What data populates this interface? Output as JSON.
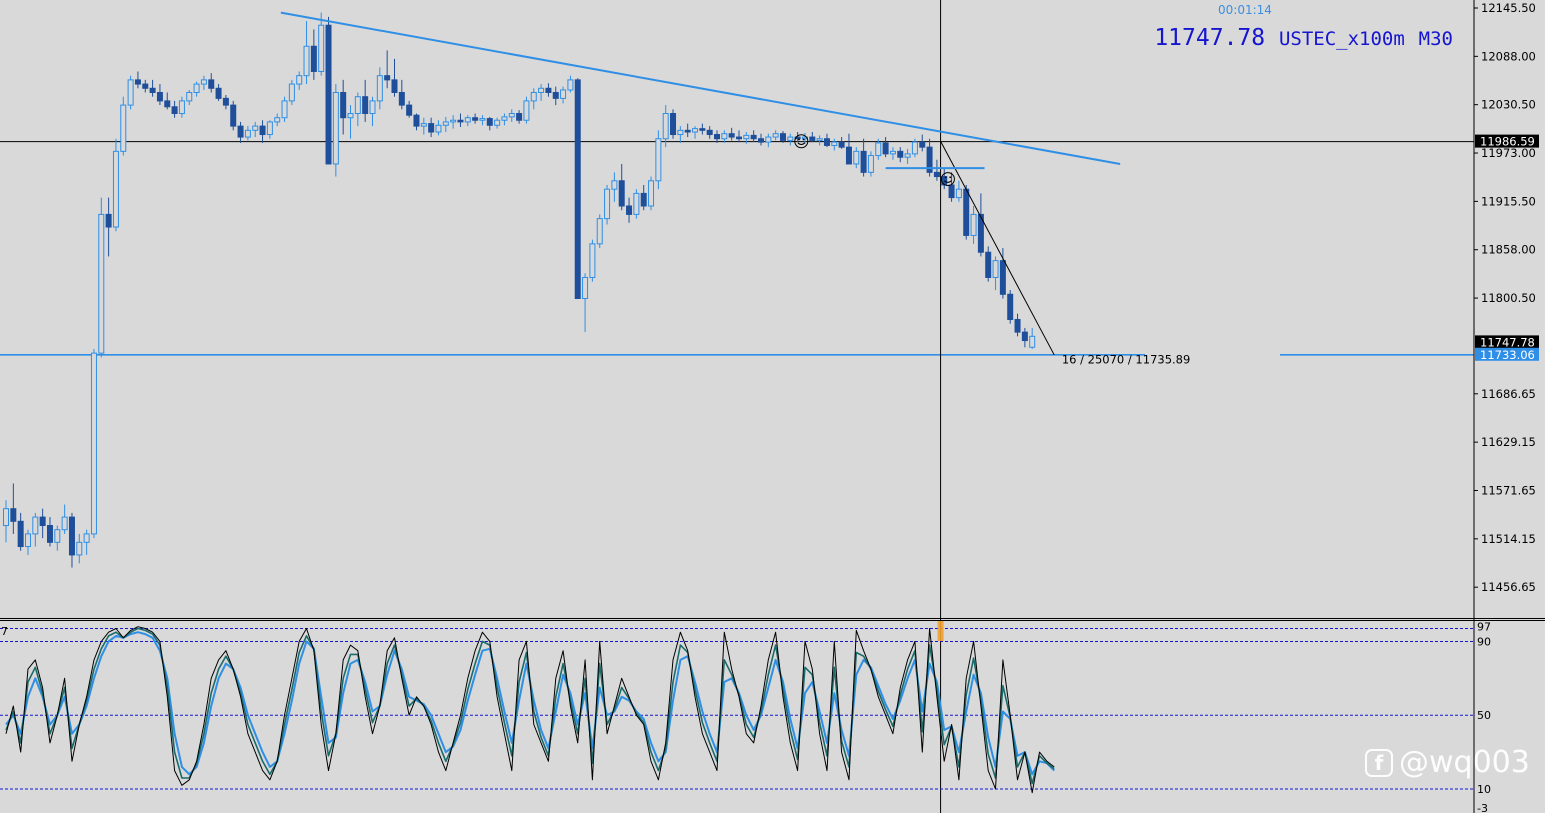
{
  "header": {
    "countdown": "00:01:14",
    "bid": "11747.78",
    "symbol": "USTEC_x100m",
    "timeframe": "M30"
  },
  "watermark": {
    "text": "@wq003",
    "icon": "weibo-like-logo-icon"
  },
  "colors": {
    "background": "#d9d9d9",
    "bull_candle": "#2f8fe6",
    "bear_candle": "#1f4f9a",
    "trendline": "#2f8fe6",
    "level_line": "#2f8fe6",
    "crosshair": "#000000",
    "osc_main": "#000000",
    "osc_signal_1": "#2f8fe6",
    "osc_signal_2": "#1a6b6b",
    "grid_dash": "#1515d0",
    "current_bar_marker": "#f0a030"
  },
  "chart_data": {
    "type": "candlestick",
    "symbol": "USTEC_x100m",
    "timeframe": "M30",
    "price_axis": {
      "min": 11420,
      "max": 12155,
      "ticks": [
        "12145.50",
        "12088.00",
        "12030.50",
        "11973.00",
        "11915.50",
        "11858.00",
        "11800.50",
        "11686.65",
        "11629.15",
        "11571.65",
        "11514.15",
        "11456.65"
      ]
    },
    "price_labels": [
      {
        "value": 11986.59,
        "text": "11986.59",
        "style": "crosshair"
      },
      {
        "value": 11747.78,
        "text": "11747.78",
        "style": "bid"
      },
      {
        "value": 11733.06,
        "text": "11733.06",
        "style": "level"
      }
    ],
    "horizontal_levels": [
      {
        "price": 11733.06,
        "kind": "support"
      },
      {
        "price": 11986.59,
        "kind": "crosshair"
      }
    ],
    "trendlines": [
      {
        "from": {
          "bar": 37.5,
          "price": 12140
        },
        "to": {
          "bar": 152,
          "price": 11960
        },
        "kind": "resistance"
      },
      {
        "from": {
          "bar": 127.5,
          "price": 11987
        },
        "to": {
          "bar": 143,
          "price": 11733
        },
        "kind": "measure"
      },
      {
        "from": {
          "bar": 120,
          "price": 11955
        },
        "to": {
          "bar": 133.5,
          "price": 11955
        },
        "kind": "range"
      }
    ],
    "ruler_label": {
      "text": "16 / 25070 / 11735.89",
      "bar": 143.5,
      "price": 11735.89
    },
    "smiley_markers": [
      {
        "bar": 108.5,
        "price": 11987
      },
      {
        "bar": 128.5,
        "price": 11942
      }
    ],
    "crosshair_bar": 127.5,
    "bars": [
      [
        11530,
        11560,
        11510,
        11550
      ],
      [
        11550,
        11580,
        11520,
        11535
      ],
      [
        11535,
        11545,
        11500,
        11505
      ],
      [
        11505,
        11525,
        11495,
        11520
      ],
      [
        11520,
        11545,
        11505,
        11540
      ],
      [
        11540,
        11550,
        11515,
        11530
      ],
      [
        11530,
        11540,
        11505,
        11510
      ],
      [
        11510,
        11530,
        11500,
        11525
      ],
      [
        11525,
        11555,
        11520,
        11540
      ],
      [
        11540,
        11545,
        11480,
        11495
      ],
      [
        11495,
        11520,
        11485,
        11510
      ],
      [
        11510,
        11525,
        11495,
        11520
      ],
      [
        11520,
        11740,
        11515,
        11735
      ],
      [
        11735,
        11920,
        11730,
        11900
      ],
      [
        11900,
        11920,
        11850,
        11885
      ],
      [
        11885,
        11990,
        11880,
        11975
      ],
      [
        11975,
        12040,
        11970,
        12030
      ],
      [
        12030,
        12065,
        12025,
        12060
      ],
      [
        12060,
        12070,
        12050,
        12055
      ],
      [
        12055,
        12060,
        12045,
        12050
      ],
      [
        12050,
        12060,
        12040,
        12045
      ],
      [
        12045,
        12055,
        12030,
        12035
      ],
      [
        12035,
        12045,
        12025,
        12028
      ],
      [
        12028,
        12035,
        12015,
        12020
      ],
      [
        12020,
        12040,
        12015,
        12035
      ],
      [
        12035,
        12048,
        12030,
        12045
      ],
      [
        12045,
        12058,
        12040,
        12055
      ],
      [
        12055,
        12065,
        12048,
        12060
      ],
      [
        12060,
        12068,
        12045,
        12050
      ],
      [
        12050,
        12055,
        12035,
        12038
      ],
      [
        12038,
        12042,
        12025,
        12030
      ],
      [
        12030,
        12035,
        12000,
        12005
      ],
      [
        12005,
        12010,
        11985,
        11992
      ],
      [
        11992,
        12005,
        11988,
        12000
      ],
      [
        12000,
        12010,
        11992,
        12005
      ],
      [
        12005,
        12012,
        11985,
        11995
      ],
      [
        11995,
        12012,
        11990,
        12010
      ],
      [
        12010,
        12020,
        12005,
        12015
      ],
      [
        12015,
        12040,
        12010,
        12035
      ],
      [
        12035,
        12060,
        12030,
        12055
      ],
      [
        12055,
        12070,
        12048,
        12065
      ],
      [
        12065,
        12130,
        12055,
        12100
      ],
      [
        12100,
        12120,
        12060,
        12070
      ],
      [
        12070,
        12140,
        12065,
        12125
      ],
      [
        12125,
        12135,
        11960,
        11960
      ],
      [
        11960,
        12055,
        11945,
        12045
      ],
      [
        12045,
        12060,
        11995,
        12015
      ],
      [
        12015,
        12030,
        11990,
        12020
      ],
      [
        12020,
        12045,
        12005,
        12040
      ],
      [
        12040,
        12060,
        12010,
        12020
      ],
      [
        12020,
        12040,
        12005,
        12035
      ],
      [
        12035,
        12075,
        12025,
        12065
      ],
      [
        12065,
        12095,
        12050,
        12060
      ],
      [
        12060,
        12085,
        12040,
        12045
      ],
      [
        12045,
        12060,
        12025,
        12030
      ],
      [
        12030,
        12035,
        12015,
        12018
      ],
      [
        12018,
        12020,
        12000,
        12005
      ],
      [
        12005,
        12015,
        11995,
        12008
      ],
      [
        12008,
        12015,
        11992,
        11998
      ],
      [
        11998,
        12012,
        11994,
        12006
      ],
      [
        12006,
        12016,
        11998,
        12010
      ],
      [
        12010,
        12018,
        12002,
        12012
      ],
      [
        12012,
        12020,
        12004,
        12010
      ],
      [
        12010,
        12018,
        12005,
        12015
      ],
      [
        12015,
        12020,
        12008,
        12012
      ],
      [
        12012,
        12018,
        12006,
        12014
      ],
      [
        12014,
        12016,
        12000,
        12006
      ],
      [
        12006,
        12015,
        12002,
        12012
      ],
      [
        12012,
        12020,
        12006,
        12016
      ],
      [
        12016,
        12025,
        12010,
        12020
      ],
      [
        12020,
        12024,
        12008,
        12012
      ],
      [
        12012,
        12040,
        12008,
        12035
      ],
      [
        12035,
        12050,
        12025,
        12045
      ],
      [
        12045,
        12055,
        12035,
        12050
      ],
      [
        12050,
        12056,
        12040,
        12045
      ],
      [
        12045,
        12052,
        12030,
        12038
      ],
      [
        12038,
        12052,
        12032,
        12048
      ],
      [
        12048,
        12065,
        12045,
        12060
      ],
      [
        12060,
        12062,
        11800,
        11800
      ],
      [
        11800,
        11830,
        11760,
        11825
      ],
      [
        11825,
        11870,
        11820,
        11865
      ],
      [
        11865,
        11900,
        11860,
        11895
      ],
      [
        11895,
        11935,
        11888,
        11930
      ],
      [
        11930,
        11950,
        11915,
        11940
      ],
      [
        11940,
        11960,
        11905,
        11910
      ],
      [
        11910,
        11920,
        11890,
        11900
      ],
      [
        11900,
        11930,
        11895,
        11925
      ],
      [
        11925,
        11935,
        11905,
        11910
      ],
      [
        11910,
        11945,
        11905,
        11940
      ],
      [
        11940,
        12000,
        11930,
        11990
      ],
      [
        11990,
        12030,
        11980,
        12020
      ],
      [
        12020,
        12025,
        11990,
        11995
      ],
      [
        11995,
        12005,
        11985,
        12000
      ],
      [
        12000,
        12008,
        11992,
        11998
      ],
      [
        11998,
        12005,
        11990,
        12002
      ],
      [
        12002,
        12008,
        11995,
        12000
      ],
      [
        12000,
        12005,
        11990,
        11995
      ],
      [
        11995,
        12000,
        11985,
        11990
      ],
      [
        11990,
        12000,
        11985,
        11996
      ],
      [
        11996,
        12003,
        11988,
        11992
      ],
      [
        11992,
        12000,
        11986,
        11990
      ],
      [
        11990,
        11998,
        11984,
        11994
      ],
      [
        11994,
        12000,
        11986,
        11990
      ],
      [
        11990,
        11996,
        11982,
        11986
      ],
      [
        11986,
        11996,
        11980,
        11992
      ],
      [
        11992,
        12000,
        11988,
        11996
      ],
      [
        11996,
        11999,
        11985,
        11988
      ],
      [
        11988,
        11996,
        11982,
        11992
      ],
      [
        11992,
        11998,
        11986,
        11990
      ],
      [
        11990,
        11997,
        11984,
        11992
      ],
      [
        11992,
        11998,
        11986,
        11988
      ],
      [
        11988,
        11994,
        11982,
        11990
      ],
      [
        11990,
        11996,
        11980,
        11982
      ],
      [
        11982,
        11990,
        11976,
        11986
      ],
      [
        11986,
        11992,
        11978,
        11980
      ],
      [
        11980,
        11996,
        11960,
        11960
      ],
      [
        11960,
        11980,
        11955,
        11975
      ],
      [
        11975,
        11990,
        11945,
        11950
      ],
      [
        11950,
        11975,
        11945,
        11970
      ],
      [
        11970,
        11990,
        11965,
        11985
      ],
      [
        11985,
        11992,
        11968,
        11972
      ],
      [
        11972,
        11980,
        11965,
        11975
      ],
      [
        11975,
        11980,
        11962,
        11968
      ],
      [
        11968,
        11978,
        11960,
        11972
      ],
      [
        11972,
        11990,
        11968,
        11986
      ],
      [
        11986,
        11995,
        11975,
        11980
      ],
      [
        11980,
        11990,
        11945,
        11950
      ],
      [
        11950,
        11965,
        11940,
        11945
      ],
      [
        11945,
        11955,
        11930,
        11935
      ],
      [
        11935,
        11950,
        11915,
        11920
      ],
      [
        11920,
        11940,
        11915,
        11930
      ],
      [
        11930,
        11935,
        11870,
        11875
      ],
      [
        11875,
        11910,
        11865,
        11900
      ],
      [
        11900,
        11925,
        11850,
        11855
      ],
      [
        11855,
        11862,
        11820,
        11825
      ],
      [
        11825,
        11850,
        11810,
        11845
      ],
      [
        11845,
        11860,
        11800,
        11805
      ],
      [
        11805,
        11810,
        11770,
        11775
      ],
      [
        11775,
        11782,
        11755,
        11760
      ],
      [
        11760,
        11765,
        11742,
        11750
      ],
      [
        11742,
        11765,
        11740,
        11755
      ]
    ],
    "oscillator": {
      "levels": [
        97,
        90,
        50,
        10
      ],
      "level_labels": [
        "97",
        "90",
        "50",
        "10"
      ],
      "left_label": "7",
      "bottom_label": "-3",
      "current_bar": 127.5,
      "main_line": [
        40,
        55,
        30,
        75,
        80,
        65,
        35,
        50,
        70,
        25,
        45,
        60,
        80,
        90,
        95,
        97,
        92,
        96,
        98,
        97,
        95,
        90,
        60,
        20,
        12,
        15,
        25,
        45,
        70,
        80,
        85,
        75,
        60,
        40,
        30,
        20,
        15,
        25,
        50,
        70,
        90,
        97,
        85,
        45,
        20,
        40,
        80,
        88,
        85,
        60,
        40,
        55,
        85,
        92,
        70,
        50,
        60,
        55,
        45,
        30,
        20,
        35,
        50,
        70,
        85,
        95,
        90,
        60,
        40,
        20,
        80,
        90,
        45,
        35,
        25,
        70,
        85,
        55,
        35,
        80,
        15,
        90,
        40,
        55,
        70,
        60,
        50,
        45,
        25,
        15,
        35,
        80,
        95,
        85,
        60,
        40,
        30,
        20,
        95,
        75,
        60,
        40,
        35,
        55,
        80,
        95,
        60,
        35,
        20,
        90,
        75,
        40,
        20,
        90,
        30,
        15,
        96,
        85,
        75,
        60,
        50,
        40,
        65,
        80,
        90,
        30,
        97,
        60,
        25,
        45,
        15,
        70,
        90,
        55,
        20,
        10,
        80,
        50,
        15,
        30,
        8,
        30,
        25,
        22
      ],
      "signal_1": [
        45,
        50,
        40,
        60,
        70,
        60,
        45,
        50,
        60,
        40,
        45,
        55,
        70,
        82,
        90,
        93,
        92,
        94,
        95,
        94,
        92,
        85,
        70,
        40,
        22,
        18,
        22,
        35,
        55,
        70,
        78,
        75,
        65,
        50,
        40,
        30,
        22,
        25,
        40,
        58,
        78,
        90,
        86,
        60,
        35,
        38,
        62,
        78,
        80,
        68,
        52,
        55,
        72,
        85,
        75,
        60,
        58,
        56,
        50,
        40,
        30,
        33,
        42,
        58,
        72,
        85,
        86,
        70,
        52,
        35,
        58,
        78,
        58,
        42,
        32,
        52,
        72,
        62,
        45,
        62,
        32,
        65,
        50,
        52,
        60,
        58,
        52,
        48,
        35,
        25,
        30,
        58,
        80,
        82,
        68,
        52,
        40,
        30,
        68,
        70,
        62,
        50,
        42,
        50,
        65,
        80,
        68,
        48,
        32,
        62,
        68,
        52,
        35,
        62,
        42,
        28,
        72,
        80,
        76,
        66,
        56,
        48,
        58,
        70,
        80,
        52,
        78,
        68,
        42,
        44,
        30,
        52,
        72,
        62,
        38,
        22,
        52,
        48,
        28,
        30,
        18,
        25,
        24,
        20
      ],
      "signal_2": [
        42,
        52,
        35,
        68,
        76,
        62,
        40,
        50,
        65,
        32,
        45,
        58,
        75,
        86,
        93,
        95,
        92,
        95,
        97,
        96,
        94,
        88,
        65,
        30,
        16,
        16,
        24,
        40,
        62,
        75,
        82,
        75,
        62,
        45,
        35,
        25,
        18,
        25,
        45,
        64,
        84,
        93,
        86,
        52,
        28,
        40,
        70,
        83,
        83,
        64,
        46,
        55,
        78,
        88,
        72,
        55,
        59,
        55,
        47,
        35,
        25,
        34,
        46,
        64,
        78,
        90,
        88,
        65,
        46,
        28,
        68,
        84,
        52,
        38,
        28,
        60,
        78,
        58,
        40,
        70,
        24,
        78,
        45,
        53,
        65,
        59,
        51,
        46,
        30,
        20,
        32,
        68,
        88,
        84,
        64,
        46,
        35,
        25,
        80,
        72,
        61,
        45,
        38,
        52,
        72,
        88,
        64,
        42,
        26,
        76,
        72,
        46,
        28,
        76,
        36,
        22,
        84,
        82,
        75,
        63,
        53,
        44,
        61,
        75,
        85,
        41,
        88,
        64,
        34,
        44,
        22,
        61,
        81,
        58,
        29,
        16,
        66,
        49,
        22,
        30,
        13,
        28,
        24,
        21
      ]
    }
  }
}
